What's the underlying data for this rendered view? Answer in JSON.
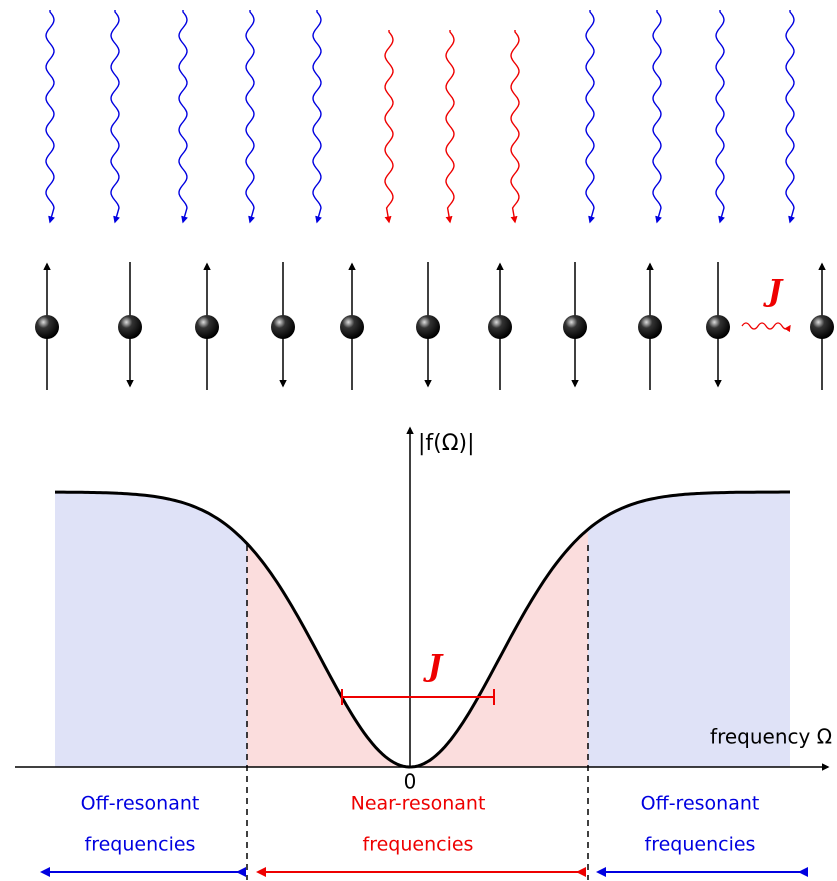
{
  "spin_chain": {
    "coupling_label": "J"
  },
  "plot": {
    "y_axis_label": "|f(Ω)|",
    "x_axis_label": "frequency Ω",
    "origin_label": "0",
    "width_label": "J"
  },
  "regions": [
    {
      "lines": [
        "Off-resonant",
        "frequencies"
      ]
    },
    {
      "lines": [
        "Near-resonant",
        "frequencies"
      ]
    },
    {
      "lines": [
        "Off-resonant",
        "frequencies"
      ]
    }
  ]
}
